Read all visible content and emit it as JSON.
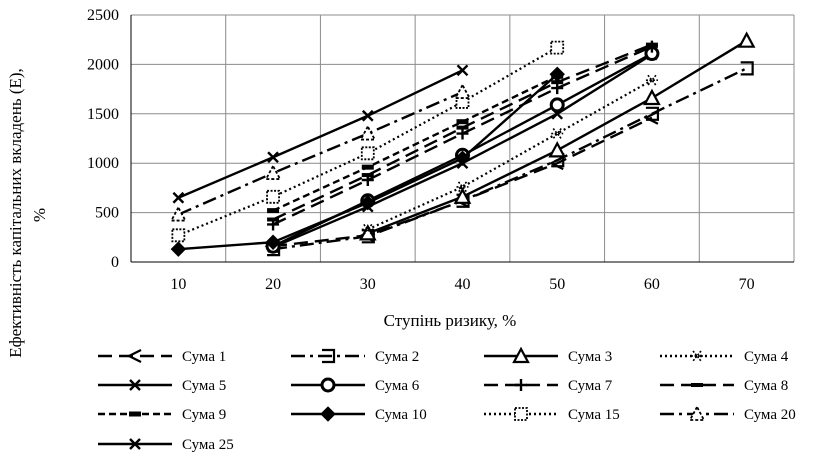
{
  "chart_data": {
    "type": "line",
    "xlabel": "Ступінь ризику, %",
    "ylabel_line1": "Ефективність капітальних вкладень (Е),",
    "ylabel_line2": "%",
    "x_ticks": [
      "10",
      "20",
      "30",
      "40",
      "50",
      "60",
      "70"
    ],
    "y_ticks": [
      "0",
      "500",
      "1000",
      "1500",
      "2000",
      "2500"
    ],
    "xlim": [
      10,
      70
    ],
    "ylim": [
      0,
      2500
    ],
    "grid": true,
    "legend_position": "bottom",
    "series": [
      {
        "name": "Сума 1",
        "marker": "lt",
        "dash": "long-dash",
        "x": [
          20,
          30,
          40,
          50,
          60
        ],
        "y": [
          160,
          270,
          620,
          1000,
          1460
        ]
      },
      {
        "name": "Сума 2",
        "marker": "bracket",
        "dash": "dash-dot",
        "x": [
          20,
          30,
          40,
          50,
          60,
          70
        ],
        "y": [
          130,
          260,
          620,
          1030,
          1500,
          1960
        ]
      },
      {
        "name": "Сума 3",
        "marker": "triangle",
        "dash": "solid",
        "x": [
          30,
          40,
          50,
          60,
          70
        ],
        "y": [
          290,
          660,
          1130,
          1660,
          2240
        ]
      },
      {
        "name": "Сума 4",
        "marker": "star",
        "dash": "dotted",
        "x": [
          30,
          40,
          50,
          60
        ],
        "y": [
          330,
          760,
          1300,
          1840
        ]
      },
      {
        "name": "Сума 5",
        "marker": "x",
        "dash": "solid",
        "x": [
          20,
          30,
          40,
          50,
          60
        ],
        "y": [
          150,
          560,
          1000,
          1500,
          2100
        ]
      },
      {
        "name": "Сума 6",
        "marker": "ring",
        "dash": "solid",
        "x": [
          20,
          30,
          40,
          50,
          60
        ],
        "y": [
          160,
          620,
          1080,
          1590,
          2110
        ]
      },
      {
        "name": "Сума 7",
        "marker": "plus",
        "dash": "long-dash",
        "x": [
          20,
          30,
          40,
          50,
          60
        ],
        "y": [
          380,
          830,
          1300,
          1760,
          2180
        ]
      },
      {
        "name": "Сума 8",
        "marker": "dash",
        "dash": "long-dash",
        "x": [
          20,
          30,
          40,
          50,
          60
        ],
        "y": [
          430,
          880,
          1360,
          1820,
          2200
        ]
      },
      {
        "name": "Сума 9",
        "marker": "bar",
        "dash": "short-dash",
        "x": [
          20,
          30,
          40,
          50
        ],
        "y": [
          520,
          960,
          1420,
          1880
        ]
      },
      {
        "name": "Сума 10",
        "marker": "diamond",
        "dash": "solid",
        "x": [
          10,
          20,
          30,
          40,
          50
        ],
        "y": [
          130,
          200,
          600,
          1050,
          1900
        ]
      },
      {
        "name": "Сума 15",
        "marker": "square-dotted",
        "dash": "dotted",
        "x": [
          10,
          20,
          30,
          40,
          50
        ],
        "y": [
          270,
          660,
          1100,
          1620,
          2170
        ]
      },
      {
        "name": "Сума 20",
        "marker": "triangle-open",
        "dash": "dash-dot",
        "x": [
          10,
          20,
          30,
          40
        ],
        "y": [
          480,
          900,
          1300,
          1720
        ]
      },
      {
        "name": "Сума 25",
        "marker": "x",
        "dash": "solid",
        "x": [
          10,
          20,
          30,
          40
        ],
        "y": [
          650,
          1060,
          1480,
          1940
        ]
      }
    ]
  }
}
